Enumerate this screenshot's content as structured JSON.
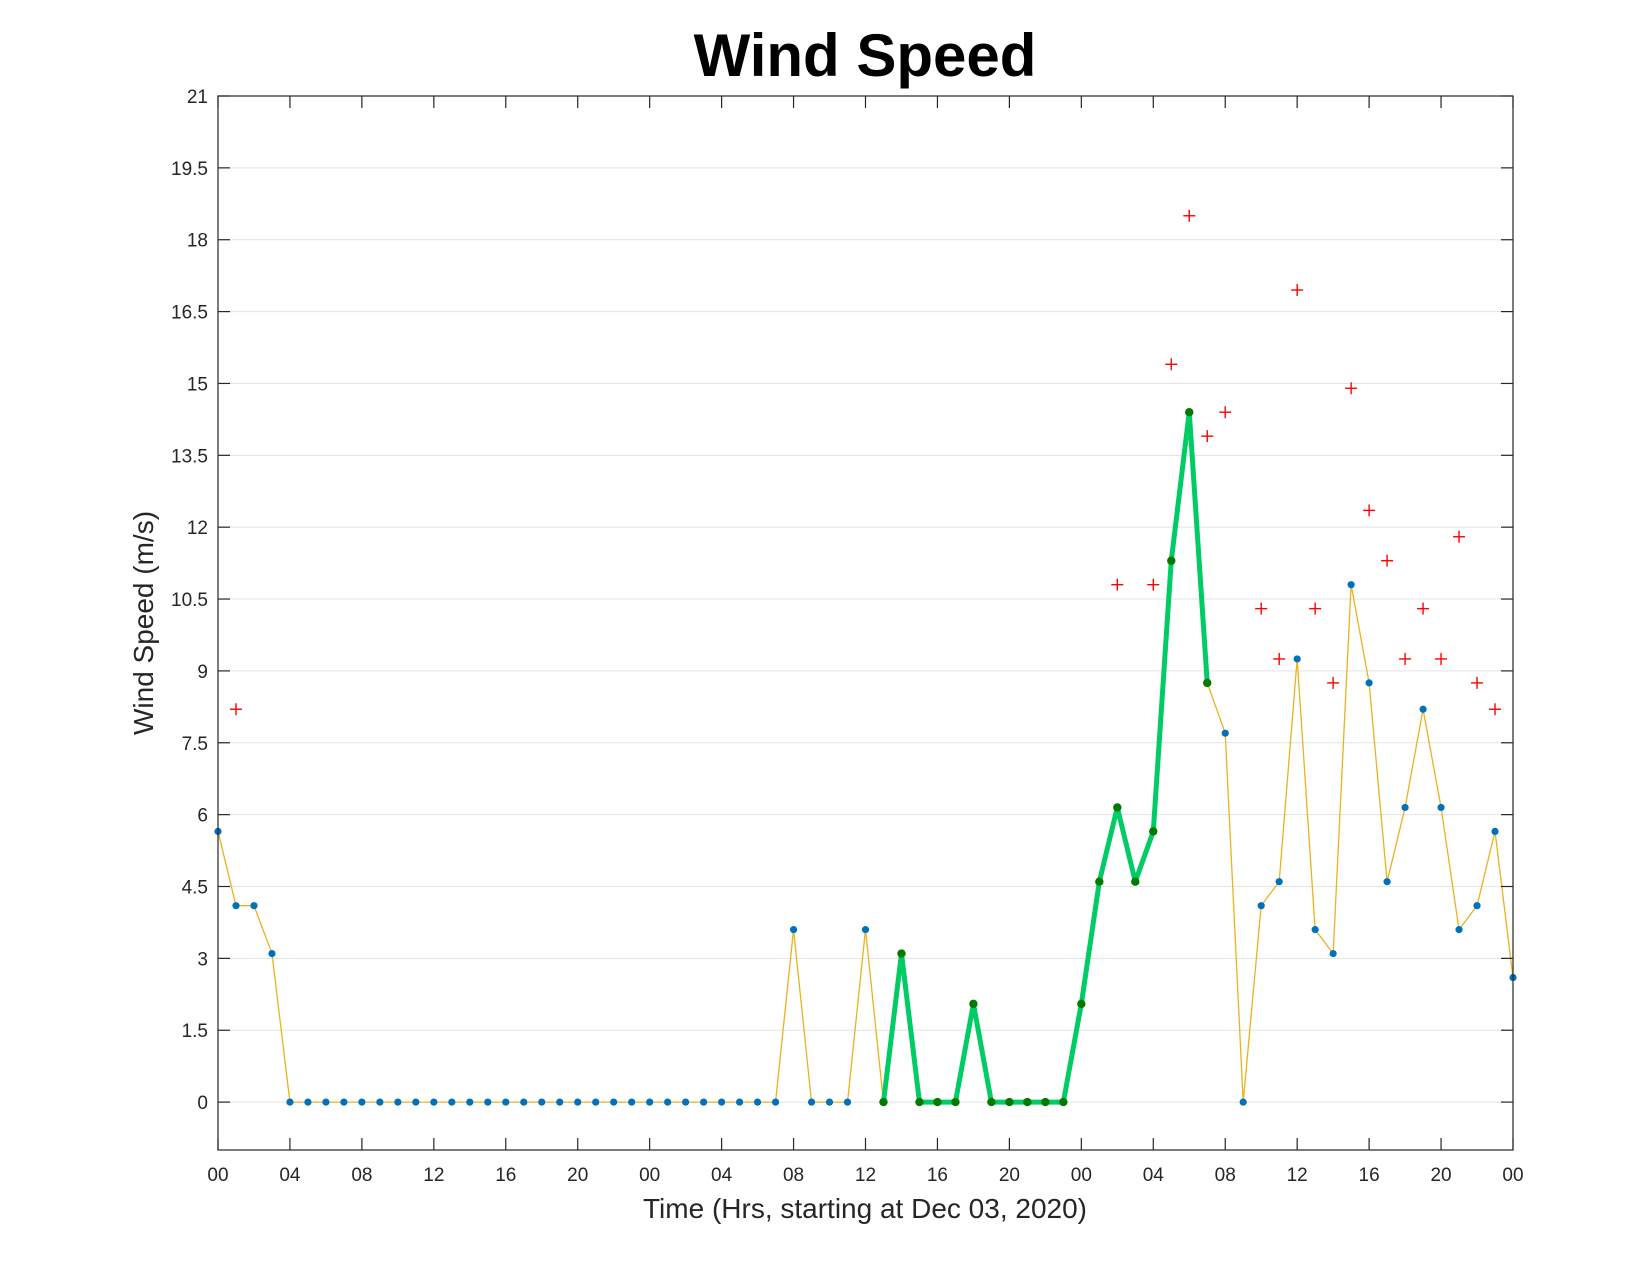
{
  "chart_data": {
    "type": "line",
    "title": "Wind Speed",
    "xlabel": "Time (Hrs, starting at Dec 03, 2020)",
    "ylabel": "Wind Speed (m/s)",
    "ylim": [
      -1,
      21
    ],
    "xlim": [
      0,
      72
    ],
    "yticks": [
      0,
      1.5,
      3,
      4.5,
      6,
      7.5,
      9,
      10.5,
      12,
      13.5,
      15,
      16.5,
      18,
      19.5,
      21
    ],
    "ytick_labels": [
      "0",
      "1.5",
      "3",
      "4.5",
      "6",
      "7.5",
      "9",
      "10.5",
      "12",
      "13.5",
      "15",
      "16.5",
      "18",
      "19.5",
      "21"
    ],
    "xticks": [
      0,
      4,
      8,
      12,
      16,
      20,
      24,
      28,
      32,
      36,
      40,
      44,
      48,
      52,
      56,
      60,
      64,
      68,
      72
    ],
    "xtick_labels": [
      "00",
      "04",
      "08",
      "12",
      "16",
      "20",
      "00",
      "04",
      "08",
      "12",
      "16",
      "20",
      "00",
      "04",
      "08",
      "12",
      "16",
      "20",
      "00"
    ],
    "grid": "horizontal",
    "colors": {
      "wind_line": "#EDB120",
      "wind_marker": "#0072BD",
      "highlight_line": "#00CC66",
      "highlight_marker": "#007A00",
      "gust_marker": "#FF0000"
    },
    "series": [
      {
        "x": [
          0,
          1,
          2,
          3,
          4,
          5,
          6,
          7,
          8,
          9,
          10,
          11,
          12,
          13,
          14,
          15,
          16,
          17,
          18,
          19,
          20,
          21,
          22,
          23,
          24,
          25,
          26,
          27,
          28,
          29,
          30,
          31,
          32,
          33,
          34,
          35,
          36,
          37,
          38,
          39,
          40,
          41,
          42,
          43,
          44,
          45,
          46,
          47,
          48,
          49,
          50,
          51,
          52,
          53,
          54,
          55,
          56,
          57,
          58,
          59,
          60,
          61,
          62,
          63,
          64,
          65,
          66,
          67,
          68,
          69,
          70,
          71,
          72
        ],
        "values": [
          5.65,
          4.1,
          4.1,
          3.1,
          0,
          0,
          0,
          0,
          0,
          0,
          0,
          0,
          0,
          0,
          0,
          0,
          0,
          0,
          0,
          0,
          0,
          0,
          0,
          0,
          0,
          0,
          0,
          0,
          0,
          0,
          0,
          0,
          3.6,
          0,
          0,
          0,
          3.6,
          0,
          3.1,
          0,
          0,
          0,
          2.05,
          0,
          0,
          0,
          0,
          0,
          2.05,
          4.6,
          6.15,
          4.6,
          5.65,
          11.3,
          14.4,
          8.75,
          7.7,
          0,
          4.1,
          4.6,
          9.25,
          3.6,
          3.1,
          10.8,
          8.75,
          4.6,
          6.15,
          8.2,
          6.15,
          3.6,
          4.1,
          5.65,
          2.6
        ]
      },
      {
        "x": [
          37,
          38,
          39,
          40,
          41,
          42,
          43,
          44,
          45,
          46,
          47,
          48,
          49,
          50,
          51,
          52,
          53,
          54,
          55
        ],
        "values": [
          0,
          3.1,
          0,
          0,
          0,
          2.05,
          0,
          0,
          0,
          0,
          0,
          2.05,
          4.6,
          6.15,
          4.6,
          5.65,
          11.3,
          14.4,
          8.75
        ]
      },
      {
        "x": [
          1,
          50,
          52,
          53,
          54,
          55,
          56,
          58,
          59,
          60,
          61,
          62,
          63,
          64,
          65,
          66,
          67,
          68,
          69,
          70,
          71
        ],
        "values": [
          8.2,
          10.8,
          10.8,
          15.4,
          18.5,
          13.9,
          14.4,
          10.3,
          9.25,
          16.95,
          10.3,
          8.75,
          14.9,
          12.35,
          11.3,
          9.25,
          10.3,
          9.25,
          11.8,
          8.75,
          8.2
        ]
      }
    ]
  }
}
